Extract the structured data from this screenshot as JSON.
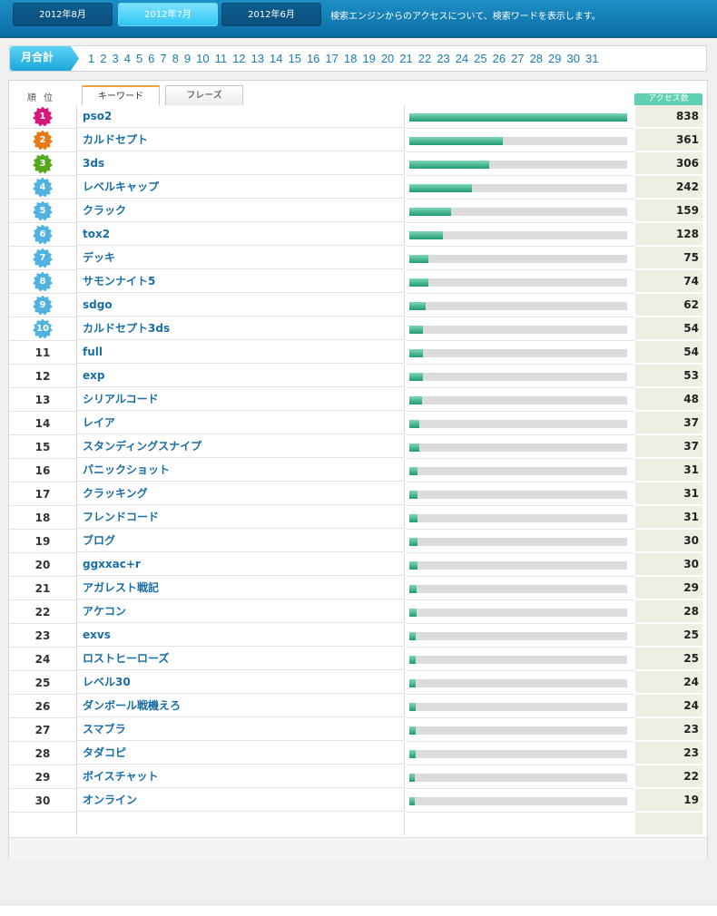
{
  "header": {
    "months": [
      {
        "label": "2012年8月",
        "active": false
      },
      {
        "label": "2012年7月",
        "active": true
      },
      {
        "label": "2012年6月",
        "active": false
      }
    ],
    "description": "検索エンジンからのアクセスについて、検索ワードを表示します。"
  },
  "daynav": {
    "monthly_label": "月合計",
    "days": [
      "1",
      "2",
      "3",
      "4",
      "5",
      "6",
      "7",
      "8",
      "9",
      "10",
      "11",
      "12",
      "13",
      "14",
      "15",
      "16",
      "17",
      "18",
      "19",
      "20",
      "21",
      "22",
      "23",
      "24",
      "25",
      "26",
      "27",
      "28",
      "29",
      "30",
      "31"
    ]
  },
  "table": {
    "rank_header": "順位",
    "tabs": [
      {
        "label": "キーワード",
        "active": true
      },
      {
        "label": "フレーズ",
        "active": false
      }
    ],
    "access_header": "アクセス数",
    "max_count": 838,
    "medal_colors": [
      "#d6187d",
      "#e57a19",
      "#55a81c",
      "#4fb2e0",
      "#4fb2e0",
      "#4fb2e0",
      "#4fb2e0",
      "#4fb2e0",
      "#4fb2e0",
      "#4fb2e0"
    ],
    "rows": [
      {
        "rank": "1",
        "word": "pso2",
        "count": "838"
      },
      {
        "rank": "2",
        "word": "カルドセプト",
        "count": "361"
      },
      {
        "rank": "3",
        "word": "3ds",
        "count": "306"
      },
      {
        "rank": "4",
        "word": "レベルキャップ",
        "count": "242"
      },
      {
        "rank": "5",
        "word": "クラック",
        "count": "159"
      },
      {
        "rank": "6",
        "word": "tox2",
        "count": "128"
      },
      {
        "rank": "7",
        "word": "デッキ",
        "count": "75"
      },
      {
        "rank": "8",
        "word": "サモンナイト5",
        "count": "74"
      },
      {
        "rank": "9",
        "word": "sdgo",
        "count": "62"
      },
      {
        "rank": "10",
        "word": "カルドセプト3ds",
        "count": "54"
      },
      {
        "rank": "11",
        "word": "full",
        "count": "54"
      },
      {
        "rank": "12",
        "word": "exp",
        "count": "53"
      },
      {
        "rank": "13",
        "word": "シリアルコード",
        "count": "48"
      },
      {
        "rank": "14",
        "word": "レイア",
        "count": "37"
      },
      {
        "rank": "15",
        "word": "スタンディングスナイプ",
        "count": "37"
      },
      {
        "rank": "16",
        "word": "パニックショット",
        "count": "31"
      },
      {
        "rank": "17",
        "word": "クラッキング",
        "count": "31"
      },
      {
        "rank": "18",
        "word": "フレンドコード",
        "count": "31"
      },
      {
        "rank": "19",
        "word": "ブログ",
        "count": "30"
      },
      {
        "rank": "20",
        "word": "ggxxac+r",
        "count": "30"
      },
      {
        "rank": "21",
        "word": "アガレスト戦記",
        "count": "29"
      },
      {
        "rank": "22",
        "word": "アケコン",
        "count": "28"
      },
      {
        "rank": "23",
        "word": "exvs",
        "count": "25"
      },
      {
        "rank": "24",
        "word": "ロストヒーローズ",
        "count": "25"
      },
      {
        "rank": "25",
        "word": "レベル30",
        "count": "24"
      },
      {
        "rank": "26",
        "word": "ダンボール戦機えろ",
        "count": "24"
      },
      {
        "rank": "27",
        "word": "スマブラ",
        "count": "23"
      },
      {
        "rank": "28",
        "word": "タダコピ",
        "count": "23"
      },
      {
        "rank": "29",
        "word": "ボイスチャット",
        "count": "22"
      },
      {
        "rank": "30",
        "word": "オンライン",
        "count": "19"
      }
    ]
  }
}
